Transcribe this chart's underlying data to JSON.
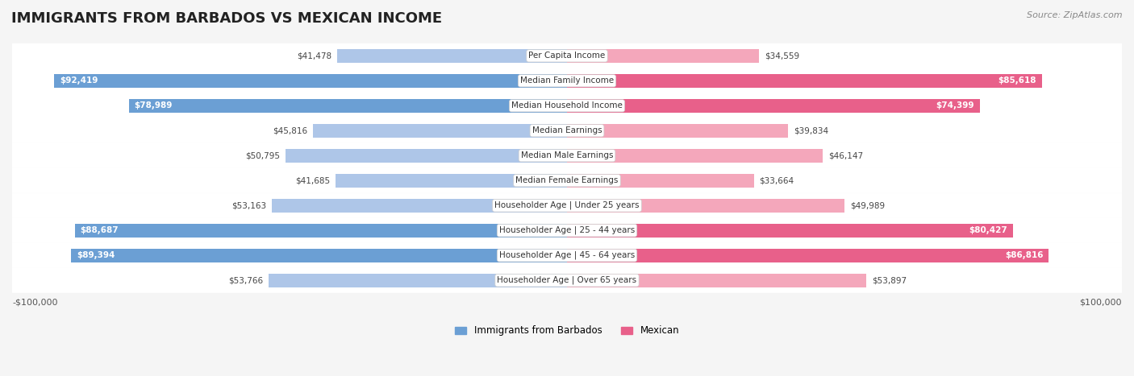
{
  "title": "IMMIGRANTS FROM BARBADOS VS MEXICAN INCOME",
  "source": "Source: ZipAtlas.com",
  "categories": [
    "Per Capita Income",
    "Median Family Income",
    "Median Household Income",
    "Median Earnings",
    "Median Male Earnings",
    "Median Female Earnings",
    "Householder Age | Under 25 years",
    "Householder Age | 25 - 44 years",
    "Householder Age | 45 - 64 years",
    "Householder Age | Over 65 years"
  ],
  "barbados_values": [
    41478,
    92419,
    78989,
    45816,
    50795,
    41685,
    53163,
    88687,
    89394,
    53766
  ],
  "mexican_values": [
    34559,
    85618,
    74399,
    39834,
    46147,
    33664,
    49989,
    80427,
    86816,
    53897
  ],
  "barbados_labels": [
    "$41,478",
    "$92,419",
    "$78,989",
    "$45,816",
    "$50,795",
    "$41,685",
    "$53,163",
    "$88,687",
    "$89,394",
    "$53,766"
  ],
  "mexican_labels": [
    "$34,559",
    "$85,618",
    "$74,399",
    "$39,834",
    "$46,147",
    "$33,664",
    "$49,989",
    "$80,427",
    "$86,816",
    "$53,897"
  ],
  "max_value": 100000,
  "barbados_color_light": "#aec6e8",
  "barbados_color_dark": "#6b9fd4",
  "mexican_color_light": "#f4a7bb",
  "mexican_color_dark": "#e8608a",
  "label_color_light": "#444444",
  "label_color_dark": "#ffffff",
  "dark_threshold": 70000,
  "background_color": "#f5f5f5",
  "row_bg_color": "#ffffff",
  "bar_height": 0.55,
  "legend_barbados": "Immigrants from Barbados",
  "legend_mexican": "Mexican",
  "xlabel_left": "-$100,000",
  "xlabel_right": "$100,000"
}
